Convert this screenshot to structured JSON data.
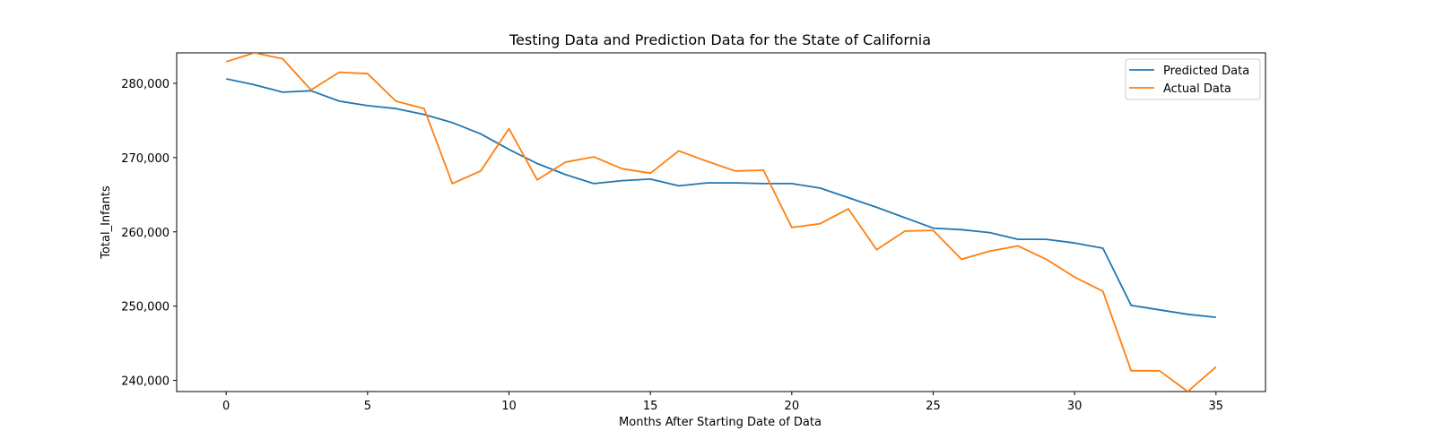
{
  "chart_data": {
    "type": "line",
    "title": "Testing Data and Prediction Data for the State of California",
    "xlabel": "Months After Starting Date of Data",
    "ylabel": "Total_Infants",
    "xlim": [
      -1.75,
      36.75
    ],
    "ylim": [
      238500,
      284100
    ],
    "x_ticks": [
      0,
      5,
      10,
      15,
      20,
      25,
      30,
      35
    ],
    "y_ticks": [
      240000,
      250000,
      260000,
      270000,
      280000
    ],
    "y_tick_labels": [
      "240,000",
      "250,000",
      "260,000",
      "270,000",
      "280,000"
    ],
    "grid": false,
    "legend_position": "top-right",
    "x": [
      0,
      1,
      2,
      3,
      4,
      5,
      6,
      7,
      8,
      9,
      10,
      11,
      12,
      13,
      14,
      15,
      16,
      17,
      18,
      19,
      20,
      21,
      22,
      23,
      24,
      25,
      26,
      27,
      28,
      29,
      30,
      31,
      32,
      33,
      34,
      35
    ],
    "series": [
      {
        "name": "Predicted Data",
        "color": "#1f77b4",
        "values": [
          280600,
          279800,
          278800,
          279000,
          277600,
          277000,
          276600,
          275800,
          274700,
          273200,
          271100,
          269200,
          267700,
          266500,
          266900,
          267100,
          266200,
          266600,
          266600,
          266500,
          266500,
          265900,
          264600,
          263300,
          261900,
          260500,
          260300,
          259900,
          259000,
          259000,
          258500,
          257800,
          250100,
          249500,
          248900,
          248500
        ]
      },
      {
        "name": "Actual Data",
        "color": "#ff7f0e",
        "values": [
          282900,
          284100,
          283300,
          279100,
          281500,
          281300,
          277600,
          276600,
          266500,
          268200,
          273900,
          267000,
          269400,
          270100,
          268500,
          267900,
          270900,
          269500,
          268200,
          268300,
          260600,
          261100,
          263100,
          257600,
          260100,
          260200,
          256300,
          257400,
          258100,
          256300,
          253900,
          252000,
          241300,
          241300,
          238500,
          241800
        ]
      }
    ]
  }
}
